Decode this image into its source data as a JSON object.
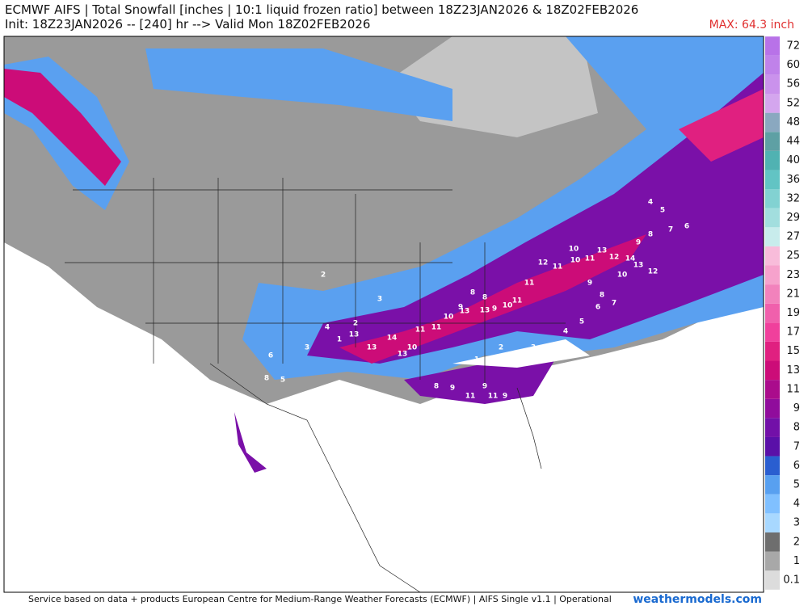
{
  "header": {
    "title": "ECMWF AIFS | Total Snowfall [inches | 10:1 liquid frozen ratio] between 18Z23JAN2026 & 18Z02FEB2026",
    "subtitle": "Init: 18Z23JAN2026 -- [240] hr --> Valid Mon 18Z02FEB2026",
    "max": "MAX: 64.3 inch"
  },
  "colorbar": {
    "levels": [
      0.1,
      1,
      2,
      3,
      4,
      5,
      6,
      7,
      8,
      9,
      11,
      13,
      15,
      17,
      19,
      21,
      23,
      25,
      27,
      29,
      32,
      36,
      40,
      44,
      48,
      52,
      56,
      60,
      72
    ],
    "colors": [
      "#dcdcdc",
      "#a8a8a8",
      "#6e6e6e",
      "#a8d8ff",
      "#80c0ff",
      "#58a0f0",
      "#2a5ed0",
      "#5a10a8",
      "#7210a8",
      "#900c9c",
      "#aa0c8c",
      "#cc0c78",
      "#e02080",
      "#f0409c",
      "#f060ac",
      "#f282bc",
      "#f6a2cc",
      "#f8bcda",
      "#c8ecec",
      "#a2dede",
      "#82d2d2",
      "#62c4c4",
      "#50b2b2",
      "#5ea0a4",
      "#8aa8c0",
      "#d4a6ee",
      "#ca92ec",
      "#c082ea",
      "#b872e8"
    ]
  },
  "map": {
    "point_labels": [
      13,
      13,
      14,
      13,
      10,
      11,
      11,
      10,
      9,
      8,
      8,
      9,
      10,
      11,
      13,
      13,
      11,
      12,
      11,
      10,
      9,
      8,
      7,
      6,
      5,
      4,
      3,
      2,
      1,
      11,
      9,
      9,
      11,
      9,
      7,
      8,
      10,
      11,
      13,
      12,
      14,
      13,
      12,
      10,
      9,
      8,
      7,
      6,
      5,
      4,
      3,
      2,
      1,
      5,
      6,
      8,
      4,
      3,
      2
    ]
  },
  "footer": {
    "credit": "Service based on data + products European Centre for Medium-Range Weather Forecasts (ECMWF) | AIFS Single v1.1 | Operational",
    "site": "weathermodels.com"
  }
}
